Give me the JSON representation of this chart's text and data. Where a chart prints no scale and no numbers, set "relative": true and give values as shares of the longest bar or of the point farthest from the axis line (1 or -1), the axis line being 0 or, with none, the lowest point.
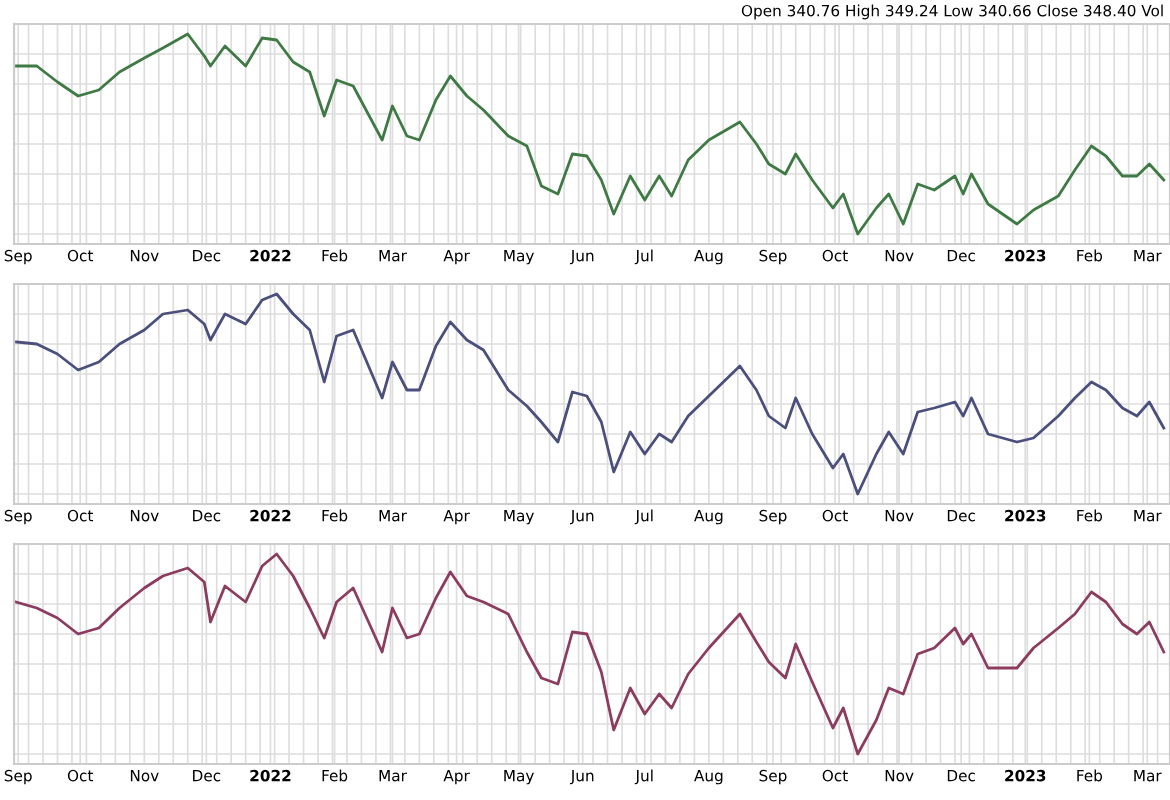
{
  "chart_data": [
    {
      "type": "line",
      "relative": true,
      "grid": true,
      "annotations": [
        "Open 340.76 High 349.24 Low 340.66 Close 348.40 Vol"
      ],
      "xlim": [
        "2021-08-30",
        "2023-03-12"
      ],
      "xticks": [
        {
          "value": "2021-09-01",
          "label": "Sep"
        },
        {
          "value": "2021-10-01",
          "label": "Oct"
        },
        {
          "value": "2021-11-01",
          "label": "Nov"
        },
        {
          "value": "2021-12-01",
          "label": "Dec"
        },
        {
          "value": "2022-01-01",
          "label": "2022"
        },
        {
          "value": "2022-02-01",
          "label": "Feb"
        },
        {
          "value": "2022-03-01",
          "label": "Mar"
        },
        {
          "value": "2022-04-01",
          "label": "Apr"
        },
        {
          "value": "2022-05-01",
          "label": "May"
        },
        {
          "value": "2022-06-01",
          "label": "Jun"
        },
        {
          "value": "2022-07-01",
          "label": "Jul"
        },
        {
          "value": "2022-08-01",
          "label": "Aug"
        },
        {
          "value": "2022-09-01",
          "label": "Sep"
        },
        {
          "value": "2022-10-01",
          "label": "Oct"
        },
        {
          "value": "2022-11-01",
          "label": "Nov"
        },
        {
          "value": "2022-12-01",
          "label": "Dec"
        },
        {
          "value": "2023-01-01",
          "label": "2023"
        },
        {
          "value": "2023-02-01",
          "label": "Feb"
        },
        {
          "value": "2023-03-01",
          "label": "Mar"
        }
      ],
      "x": [
        "2021-08-31",
        "2021-09-10",
        "2021-09-20",
        "2021-09-30",
        "2021-10-10",
        "2021-10-20",
        "2021-11-01",
        "2021-11-10",
        "2021-11-22",
        "2021-11-30",
        "2021-12-03",
        "2021-12-10",
        "2021-12-20",
        "2021-12-28",
        "2022-01-04",
        "2022-01-12",
        "2022-01-20",
        "2022-01-27",
        "2022-02-02",
        "2022-02-10",
        "2022-02-24",
        "2022-03-01",
        "2022-03-08",
        "2022-03-14",
        "2022-03-22",
        "2022-03-29",
        "2022-04-06",
        "2022-04-14",
        "2022-04-26",
        "2022-05-05",
        "2022-05-12",
        "2022-05-20",
        "2022-05-27",
        "2022-06-03",
        "2022-06-10",
        "2022-06-16",
        "2022-06-24",
        "2022-07-01",
        "2022-07-08",
        "2022-07-14",
        "2022-07-22",
        "2022-08-01",
        "2022-08-16",
        "2022-08-24",
        "2022-08-30",
        "2022-09-07",
        "2022-09-12",
        "2022-09-20",
        "2022-09-30",
        "2022-10-05",
        "2022-10-12",
        "2022-10-21",
        "2022-10-27",
        "2022-11-03",
        "2022-11-10",
        "2022-11-18",
        "2022-11-28",
        "2022-12-02",
        "2022-12-06",
        "2022-12-14",
        "2022-12-28",
        "2023-01-05",
        "2023-01-17",
        "2023-01-25",
        "2023-02-02",
        "2023-02-09",
        "2023-02-17",
        "2023-02-24",
        "2023-03-02",
        "2023-03-09"
      ],
      "color": "#3f7a45",
      "values": [
        0.84,
        0.84,
        0.76,
        0.69,
        0.72,
        0.81,
        0.88,
        0.93,
        1,
        0.89,
        0.84,
        0.94,
        0.84,
        0.98,
        0.97,
        0.86,
        0.81,
        0.59,
        0.77,
        0.74,
        0.47,
        0.64,
        0.49,
        0.47,
        0.67,
        0.79,
        0.69,
        0.62,
        0.49,
        0.44,
        0.24,
        0.2,
        0.4,
        0.39,
        0.27,
        0.1,
        0.29,
        0.17,
        0.29,
        0.19,
        0.37,
        0.47,
        0.56,
        0.45,
        0.35,
        0.3,
        0.4,
        0.27,
        0.13,
        0.2,
        0,
        0.13,
        0.2,
        0.05,
        0.25,
        0.22,
        0.29,
        0.2,
        0.3,
        0.15,
        0.05,
        0.12,
        0.19,
        0.32,
        0.44,
        0.39,
        0.29,
        0.29,
        0.35,
        0.27
      ]
    },
    {
      "type": "line",
      "relative": true,
      "grid": true,
      "xlim": [
        "2021-08-30",
        "2023-03-12"
      ],
      "xticks": [
        {
          "value": "2021-09-01",
          "label": "Sep"
        },
        {
          "value": "2021-10-01",
          "label": "Oct"
        },
        {
          "value": "2021-11-01",
          "label": "Nov"
        },
        {
          "value": "2021-12-01",
          "label": "Dec"
        },
        {
          "value": "2022-01-01",
          "label": "2022"
        },
        {
          "value": "2022-02-01",
          "label": "Feb"
        },
        {
          "value": "2022-03-01",
          "label": "Mar"
        },
        {
          "value": "2022-04-01",
          "label": "Apr"
        },
        {
          "value": "2022-05-01",
          "label": "May"
        },
        {
          "value": "2022-06-01",
          "label": "Jun"
        },
        {
          "value": "2022-07-01",
          "label": "Jul"
        },
        {
          "value": "2022-08-01",
          "label": "Aug"
        },
        {
          "value": "2022-09-01",
          "label": "Sep"
        },
        {
          "value": "2022-10-01",
          "label": "Oct"
        },
        {
          "value": "2022-11-01",
          "label": "Nov"
        },
        {
          "value": "2022-12-01",
          "label": "Dec"
        },
        {
          "value": "2023-01-01",
          "label": "2023"
        },
        {
          "value": "2023-02-01",
          "label": "Feb"
        },
        {
          "value": "2023-03-01",
          "label": "Mar"
        }
      ],
      "x": [
        "2021-08-31",
        "2021-09-10",
        "2021-09-20",
        "2021-09-30",
        "2021-10-10",
        "2021-10-20",
        "2021-11-01",
        "2021-11-10",
        "2021-11-22",
        "2021-11-30",
        "2021-12-03",
        "2021-12-10",
        "2021-12-20",
        "2021-12-28",
        "2022-01-04",
        "2022-01-12",
        "2022-01-20",
        "2022-01-27",
        "2022-02-02",
        "2022-02-10",
        "2022-02-24",
        "2022-03-01",
        "2022-03-08",
        "2022-03-14",
        "2022-03-22",
        "2022-03-29",
        "2022-04-06",
        "2022-04-14",
        "2022-04-26",
        "2022-05-05",
        "2022-05-12",
        "2022-05-20",
        "2022-05-27",
        "2022-06-03",
        "2022-06-10",
        "2022-06-16",
        "2022-06-24",
        "2022-07-01",
        "2022-07-08",
        "2022-07-14",
        "2022-07-22",
        "2022-08-01",
        "2022-08-16",
        "2022-08-24",
        "2022-08-30",
        "2022-09-07",
        "2022-09-12",
        "2022-09-20",
        "2022-09-30",
        "2022-10-05",
        "2022-10-12",
        "2022-10-21",
        "2022-10-27",
        "2022-11-03",
        "2022-11-10",
        "2022-11-18",
        "2022-11-28",
        "2022-12-02",
        "2022-12-06",
        "2022-12-14",
        "2022-12-28",
        "2023-01-05",
        "2023-01-17",
        "2023-01-25",
        "2023-02-02",
        "2023-02-09",
        "2023-02-17",
        "2023-02-24",
        "2023-03-02",
        "2023-03-09"
      ],
      "color": "#4b4f7c",
      "values": [
        0.76,
        0.75,
        0.7,
        0.62,
        0.66,
        0.75,
        0.82,
        0.9,
        0.92,
        0.85,
        0.77,
        0.9,
        0.85,
        0.97,
        1,
        0.9,
        0.82,
        0.56,
        0.79,
        0.82,
        0.48,
        0.66,
        0.52,
        0.52,
        0.74,
        0.86,
        0.77,
        0.72,
        0.52,
        0.44,
        0.36,
        0.26,
        0.51,
        0.49,
        0.36,
        0.11,
        0.31,
        0.2,
        0.3,
        0.26,
        0.39,
        0.49,
        0.64,
        0.52,
        0.39,
        0.33,
        0.48,
        0.3,
        0.13,
        0.2,
        0,
        0.2,
        0.31,
        0.2,
        0.41,
        0.43,
        0.46,
        0.39,
        0.48,
        0.3,
        0.26,
        0.28,
        0.39,
        0.48,
        0.56,
        0.52,
        0.43,
        0.39,
        0.46,
        0.33
      ]
    },
    {
      "type": "line",
      "relative": true,
      "grid": true,
      "xlim": [
        "2021-08-30",
        "2023-03-12"
      ],
      "xticks": [
        {
          "value": "2021-09-01",
          "label": "Sep"
        },
        {
          "value": "2021-10-01",
          "label": "Oct"
        },
        {
          "value": "2021-11-01",
          "label": "Nov"
        },
        {
          "value": "2021-12-01",
          "label": "Dec"
        },
        {
          "value": "2022-01-01",
          "label": "2022"
        },
        {
          "value": "2022-02-01",
          "label": "Feb"
        },
        {
          "value": "2022-03-01",
          "label": "Mar"
        },
        {
          "value": "2022-04-01",
          "label": "Apr"
        },
        {
          "value": "2022-05-01",
          "label": "May"
        },
        {
          "value": "2022-06-01",
          "label": "Jun"
        },
        {
          "value": "2022-07-01",
          "label": "Jul"
        },
        {
          "value": "2022-08-01",
          "label": "Aug"
        },
        {
          "value": "2022-09-01",
          "label": "Sep"
        },
        {
          "value": "2022-10-01",
          "label": "Oct"
        },
        {
          "value": "2022-11-01",
          "label": "Nov"
        },
        {
          "value": "2022-12-01",
          "label": "Dec"
        },
        {
          "value": "2023-01-01",
          "label": "2023"
        },
        {
          "value": "2023-02-01",
          "label": "Feb"
        },
        {
          "value": "2023-03-01",
          "label": "Mar"
        }
      ],
      "x": [
        "2021-08-31",
        "2021-09-10",
        "2021-09-20",
        "2021-09-30",
        "2021-10-10",
        "2021-10-20",
        "2021-11-01",
        "2021-11-10",
        "2021-11-22",
        "2021-11-30",
        "2021-12-03",
        "2021-12-10",
        "2021-12-20",
        "2021-12-28",
        "2022-01-04",
        "2022-01-12",
        "2022-01-20",
        "2022-01-27",
        "2022-02-02",
        "2022-02-10",
        "2022-02-24",
        "2022-03-01",
        "2022-03-08",
        "2022-03-14",
        "2022-03-22",
        "2022-03-29",
        "2022-04-06",
        "2022-04-14",
        "2022-04-26",
        "2022-05-05",
        "2022-05-12",
        "2022-05-20",
        "2022-05-27",
        "2022-06-03",
        "2022-06-10",
        "2022-06-16",
        "2022-06-24",
        "2022-07-01",
        "2022-07-08",
        "2022-07-14",
        "2022-07-22",
        "2022-08-01",
        "2022-08-16",
        "2022-08-24",
        "2022-08-30",
        "2022-09-07",
        "2022-09-12",
        "2022-09-20",
        "2022-09-30",
        "2022-10-05",
        "2022-10-12",
        "2022-10-21",
        "2022-10-27",
        "2022-11-03",
        "2022-11-10",
        "2022-11-18",
        "2022-11-28",
        "2022-12-02",
        "2022-12-06",
        "2022-12-14",
        "2022-12-28",
        "2023-01-05",
        "2023-01-17",
        "2023-01-25",
        "2023-02-02",
        "2023-02-09",
        "2023-02-17",
        "2023-02-24",
        "2023-03-02",
        "2023-03-09"
      ],
      "color": "#8c3c5e",
      "values": [
        0.76,
        0.73,
        0.68,
        0.6,
        0.63,
        0.73,
        0.83,
        0.89,
        0.93,
        0.86,
        0.66,
        0.84,
        0.76,
        0.94,
        1,
        0.89,
        0.73,
        0.58,
        0.76,
        0.83,
        0.51,
        0.73,
        0.58,
        0.6,
        0.78,
        0.91,
        0.79,
        0.76,
        0.7,
        0.51,
        0.38,
        0.35,
        0.61,
        0.6,
        0.41,
        0.12,
        0.33,
        0.2,
        0.3,
        0.23,
        0.4,
        0.53,
        0.7,
        0.56,
        0.46,
        0.38,
        0.55,
        0.36,
        0.13,
        0.23,
        0,
        0.17,
        0.33,
        0.3,
        0.5,
        0.53,
        0.63,
        0.55,
        0.6,
        0.43,
        0.43,
        0.53,
        0.63,
        0.7,
        0.81,
        0.76,
        0.65,
        0.6,
        0.66,
        0.51
      ]
    }
  ]
}
